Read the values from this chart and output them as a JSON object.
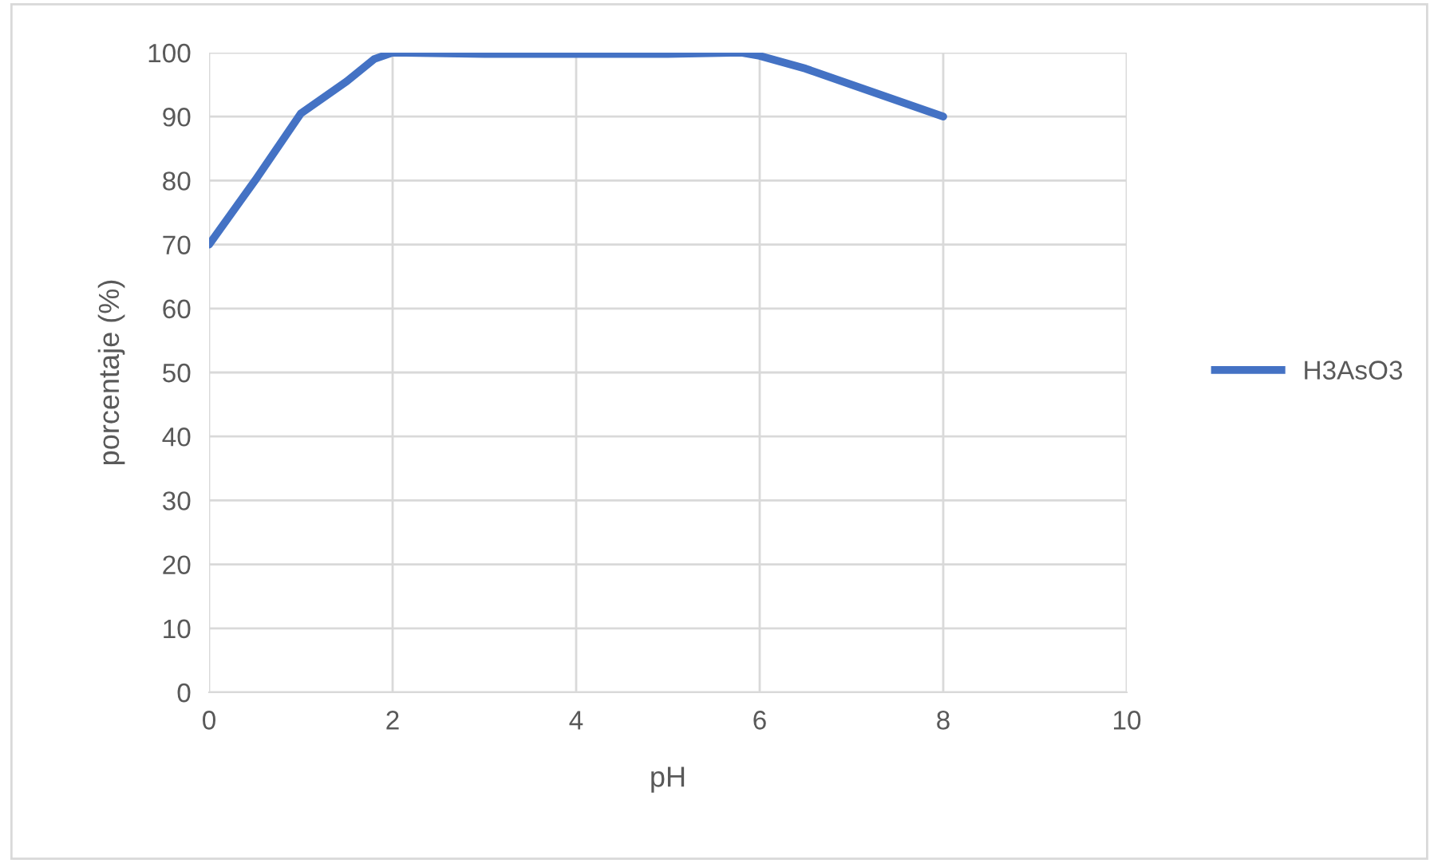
{
  "chart_data": {
    "type": "line",
    "xlabel": "pH",
    "ylabel": "porcentaje (%)",
    "x": [
      0,
      0.5,
      1,
      1.5,
      1.8,
      2,
      3,
      4,
      5,
      5.8,
      6,
      6.5,
      7,
      8
    ],
    "series": [
      {
        "name": "H3AsO3",
        "color": "#4472c4",
        "values": [
          70,
          80,
          90.5,
          95.5,
          99,
          100,
          99.8,
          99.8,
          99.8,
          100,
          99.5,
          97.5,
          95,
          90
        ]
      }
    ],
    "xlim": [
      0,
      10
    ],
    "xticks": [
      0,
      2,
      4,
      6,
      8,
      10
    ],
    "ylim": [
      0,
      100
    ],
    "yticks": [
      0,
      10,
      20,
      30,
      40,
      50,
      60,
      70,
      80,
      90,
      100
    ],
    "grid": true,
    "legend": "right",
    "marker": "none",
    "line_style": "solid"
  }
}
